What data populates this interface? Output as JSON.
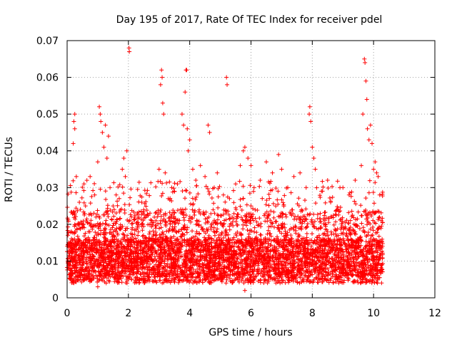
{
  "chart_data": {
    "type": "scatter",
    "title": "Day 195 of 2017, Rate Of TEC Index for receiver pdel",
    "xlabel": "GPS time / hours",
    "ylabel": "ROTI / TECUs",
    "xlim": [
      0,
      12
    ],
    "ylim": [
      0,
      0.07
    ],
    "xticks": [
      0,
      2,
      4,
      6,
      8,
      10,
      12
    ],
    "xtick_labels": [
      "0",
      "2",
      "4",
      "6",
      "8",
      "10",
      "12"
    ],
    "yticks": [
      0,
      0.01,
      0.02,
      0.03,
      0.04,
      0.05,
      0.06,
      0.07
    ],
    "ytick_labels": [
      "0",
      "0.01",
      "0.02",
      "0.03",
      "0.04",
      "0.05",
      "0.06",
      "0.07"
    ],
    "grid": true,
    "marker": "plus",
    "series_color": "#ff0000",
    "x_range_data": [
      0,
      10.3
    ],
    "series": [
      {
        "name": "ROTI",
        "points": [
          [
            0.05,
            0.009
          ],
          [
            0.1,
            0.015
          ],
          [
            0.15,
            0.011
          ],
          [
            0.2,
            0.042
          ],
          [
            0.22,
            0.048
          ],
          [
            0.25,
            0.05
          ],
          [
            0.25,
            0.046
          ],
          [
            0.3,
            0.033
          ],
          [
            0.35,
            0.02
          ],
          [
            0.4,
            0.026
          ],
          [
            0.5,
            0.013
          ],
          [
            0.55,
            0.031
          ],
          [
            0.6,
            0.025
          ],
          [
            0.7,
            0.018
          ],
          [
            0.75,
            0.033
          ],
          [
            0.8,
            0.01
          ],
          [
            0.9,
            0.028
          ],
          [
            1.0,
            0.037
          ],
          [
            1.05,
            0.052
          ],
          [
            1.08,
            0.05
          ],
          [
            1.1,
            0.048
          ],
          [
            1.15,
            0.045
          ],
          [
            1.2,
            0.041
          ],
          [
            1.25,
            0.047
          ],
          [
            1.3,
            0.038
          ],
          [
            1.35,
            0.044
          ],
          [
            1.4,
            0.03
          ],
          [
            1.5,
            0.025
          ],
          [
            1.6,
            0.028
          ],
          [
            1.7,
            0.027
          ],
          [
            1.8,
            0.035
          ],
          [
            1.85,
            0.038
          ],
          [
            1.9,
            0.033
          ],
          [
            1.95,
            0.04
          ],
          [
            2.02,
            0.068
          ],
          [
            2.03,
            0.067
          ],
          [
            2.1,
            0.022
          ],
          [
            2.3,
            0.019
          ],
          [
            2.5,
            0.024
          ],
          [
            2.7,
            0.02
          ],
          [
            2.9,
            0.021
          ],
          [
            3.0,
            0.035
          ],
          [
            3.05,
            0.058
          ],
          [
            3.08,
            0.062
          ],
          [
            3.1,
            0.06
          ],
          [
            3.12,
            0.053
          ],
          [
            3.15,
            0.05
          ],
          [
            3.2,
            0.034
          ],
          [
            3.3,
            0.027
          ],
          [
            3.5,
            0.029
          ],
          [
            3.6,
            0.031
          ],
          [
            3.75,
            0.05
          ],
          [
            3.8,
            0.047
          ],
          [
            3.85,
            0.056
          ],
          [
            3.88,
            0.062
          ],
          [
            3.9,
            0.062
          ],
          [
            3.92,
            0.046
          ],
          [
            3.95,
            0.04
          ],
          [
            4.0,
            0.043
          ],
          [
            4.1,
            0.035
          ],
          [
            4.2,
            0.032
          ],
          [
            4.35,
            0.036
          ],
          [
            4.5,
            0.033
          ],
          [
            4.6,
            0.047
          ],
          [
            4.65,
            0.045
          ],
          [
            4.8,
            0.03
          ],
          [
            4.9,
            0.034
          ],
          [
            5.1,
            0.028
          ],
          [
            5.2,
            0.06
          ],
          [
            5.22,
            0.058
          ],
          [
            5.3,
            0.027
          ],
          [
            5.5,
            0.031
          ],
          [
            5.65,
            0.036
          ],
          [
            5.75,
            0.04
          ],
          [
            5.8,
            0.041
          ],
          [
            5.9,
            0.038
          ],
          [
            6.0,
            0.036
          ],
          [
            6.1,
            0.03
          ],
          [
            6.3,
            0.032
          ],
          [
            6.5,
            0.037
          ],
          [
            6.7,
            0.034
          ],
          [
            6.9,
            0.039
          ],
          [
            7.0,
            0.035
          ],
          [
            7.2,
            0.03
          ],
          [
            7.4,
            0.033
          ],
          [
            7.6,
            0.034
          ],
          [
            7.8,
            0.03
          ],
          [
            7.9,
            0.05
          ],
          [
            7.92,
            0.052
          ],
          [
            7.95,
            0.048
          ],
          [
            8.0,
            0.041
          ],
          [
            8.05,
            0.038
          ],
          [
            8.1,
            0.035
          ],
          [
            8.3,
            0.029
          ],
          [
            8.5,
            0.032
          ],
          [
            8.6,
            0.026
          ],
          [
            8.8,
            0.024
          ],
          [
            9.0,
            0.03
          ],
          [
            9.2,
            0.028
          ],
          [
            9.4,
            0.032
          ],
          [
            9.6,
            0.036
          ],
          [
            9.65,
            0.05
          ],
          [
            9.7,
            0.065
          ],
          [
            9.72,
            0.064
          ],
          [
            9.75,
            0.059
          ],
          [
            9.78,
            0.054
          ],
          [
            9.8,
            0.046
          ],
          [
            9.85,
            0.043
          ],
          [
            9.9,
            0.047
          ],
          [
            9.95,
            0.042
          ],
          [
            10.0,
            0.035
          ],
          [
            10.05,
            0.037
          ],
          [
            10.1,
            0.034
          ],
          [
            10.15,
            0.033
          ],
          [
            10.2,
            0.028
          ],
          [
            10.25,
            0.021
          ],
          [
            10.28,
            0.009
          ],
          [
            5.8,
            0.002
          ],
          [
            1.0,
            0.003
          ]
        ]
      }
    ]
  }
}
